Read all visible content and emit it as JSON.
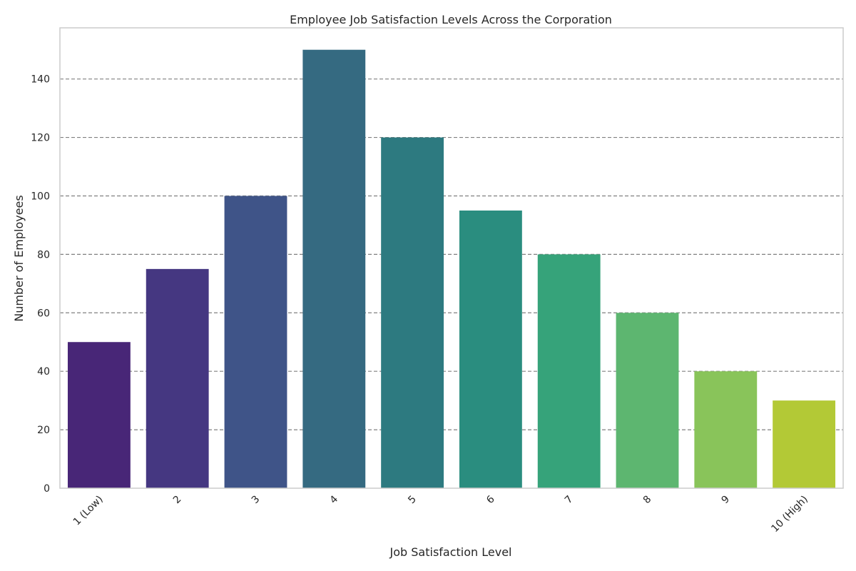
{
  "chart_data": {
    "type": "bar",
    "title": "Employee Job Satisfaction Levels Across the Corporation",
    "xlabel": "Job Satisfaction Level",
    "ylabel": "Number of Employees",
    "categories": [
      "1 (Low)",
      "2",
      "3",
      "4",
      "5",
      "6",
      "7",
      "8",
      "9",
      "10 (High)"
    ],
    "values": [
      50,
      75,
      100,
      150,
      120,
      95,
      80,
      60,
      40,
      30
    ],
    "ylim": [
      0,
      157.5
    ],
    "yticks": [
      0,
      20,
      40,
      60,
      80,
      100,
      120,
      140
    ],
    "grid": "y-dashed",
    "legend": "none",
    "colors": [
      "#482677",
      "#453781",
      "#3f5488",
      "#356a81",
      "#2d7a80",
      "#2a8d7f",
      "#36a37a",
      "#5db670",
      "#89c45a",
      "#b3c936"
    ]
  }
}
